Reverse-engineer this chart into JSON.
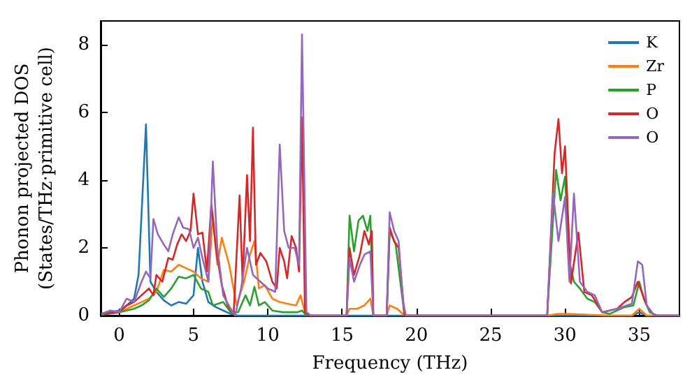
{
  "chart_data": {
    "type": "line",
    "xlabel": "Frequency (THz)",
    "ylabel": "Phonon projected DOS\n(States/THz·primitive cell)",
    "xlim": [
      -1.25,
      37.7
    ],
    "ylim": [
      0,
      8.7
    ],
    "xticks": [
      0,
      5,
      10,
      15,
      20,
      25,
      30,
      35
    ],
    "yticks": [
      0,
      2,
      4,
      6,
      8
    ],
    "legend": "top right",
    "series": [
      {
        "name": "K",
        "color": "#1f77b4",
        "x": [
          -1.2,
          0,
          0.5,
          1,
          1.3,
          1.8,
          2.1,
          2.5,
          3,
          3.5,
          4,
          4.5,
          5,
          5.3,
          5.6,
          6,
          6.5,
          7,
          7.5,
          8,
          34.5,
          35,
          35.5,
          37.7
        ],
        "values": [
          0.05,
          0.15,
          0.3,
          0.5,
          1.2,
          5.65,
          1.0,
          0.7,
          0.45,
          0.3,
          0.4,
          0.35,
          0.6,
          2.0,
          1.0,
          0.4,
          0.25,
          0.15,
          0.05,
          0,
          0,
          0.1,
          0,
          0
        ]
      },
      {
        "name": "Zr",
        "color": "#ff7f0e",
        "x": [
          -1.2,
          0,
          1,
          1.5,
          2,
          2.5,
          3,
          3.5,
          4,
          4.5,
          5,
          5.5,
          6,
          6.3,
          6.6,
          6.9,
          7.4,
          7.9,
          8.4,
          8.8,
          9.1,
          9.4,
          9.8,
          10.3,
          10.8,
          11.3,
          11.9,
          12.2,
          12.5,
          12.8,
          15.3,
          15.5,
          16,
          16.5,
          16.9,
          17.1,
          18.0,
          18.2,
          18.7,
          19.2,
          28.8,
          29.5,
          30.2,
          33,
          34.5,
          35,
          35.5,
          37.7
        ],
        "values": [
          0.05,
          0.1,
          0.3,
          0.4,
          0.5,
          0.7,
          1.35,
          1.3,
          1.5,
          1.4,
          1.3,
          1.1,
          1.0,
          2.95,
          1.5,
          2.3,
          1.5,
          0.3,
          1.0,
          1.8,
          2.2,
          0.8,
          0.9,
          0.5,
          0.4,
          0.35,
          0.3,
          0.6,
          0.1,
          0,
          0,
          0.2,
          0.2,
          0.3,
          0.5,
          0,
          0,
          0.3,
          0.2,
          0,
          0,
          0.05,
          0.05,
          0,
          0,
          0.2,
          0,
          0
        ]
      },
      {
        "name": "P",
        "color": "#2ca02c",
        "x": [
          -1.2,
          0,
          1,
          1.5,
          2,
          2.5,
          3,
          3.5,
          4,
          4.5,
          5,
          5.5,
          6,
          6.3,
          7,
          7.5,
          8,
          8.5,
          8.8,
          9.1,
          9.4,
          9.8,
          10.3,
          11,
          12,
          12.3,
          12.6,
          15.3,
          15.5,
          15.8,
          16.1,
          16.4,
          16.7,
          16.9,
          17.1,
          18.0,
          18.2,
          18.6,
          19.2,
          28.8,
          29.4,
          29.7,
          30.0,
          30.3,
          30.6,
          31,
          31.5,
          32,
          32.5,
          33,
          34,
          34.6,
          35,
          35.3,
          35.7,
          36.2,
          37.7
        ],
        "values": [
          0.02,
          0.1,
          0.2,
          0.3,
          0.45,
          0.8,
          0.55,
          0.8,
          1.15,
          1.1,
          1.2,
          0.8,
          0.7,
          0.3,
          0.4,
          0.1,
          0.1,
          0.6,
          0.3,
          0.85,
          0.3,
          0.4,
          0.15,
          0.1,
          0.1,
          0.15,
          0,
          0,
          2.95,
          1.9,
          2.8,
          2.95,
          2.5,
          2.95,
          0,
          0,
          2.5,
          2.1,
          0,
          0,
          4.3,
          3.4,
          4.1,
          1.6,
          1.0,
          0.8,
          0.5,
          0.4,
          0.1,
          0.05,
          0.25,
          0.3,
          1.0,
          0.5,
          0.1,
          0,
          0
        ]
      },
      {
        "name": "O",
        "color": "#d62728",
        "x": [
          -1.2,
          0,
          0.5,
          1,
          1.5,
          2,
          2.3,
          2.5,
          2.9,
          3.3,
          3.6,
          3.9,
          4.2,
          4.5,
          4.8,
          5.0,
          5.3,
          5.6,
          5.9,
          6.2,
          6.5,
          6.9,
          7.3,
          7.7,
          8.1,
          8.3,
          8.6,
          8.8,
          9.0,
          9.2,
          9.5,
          9.9,
          10.3,
          10.6,
          10.8,
          11.1,
          11.3,
          11.6,
          11.9,
          12.1,
          12.3,
          12.5,
          12.8,
          15.3,
          15.5,
          15.8,
          16.2,
          16.5,
          16.8,
          17.0,
          17.1,
          18.0,
          18.2,
          18.5,
          18.8,
          19.2,
          28.8,
          29.3,
          29.56,
          29.8,
          30.0,
          30.4,
          30.9,
          31.3,
          31.8,
          32.5,
          33.5,
          34,
          34.5,
          34.9,
          35.5,
          36,
          37.7
        ],
        "values": [
          0.05,
          0.1,
          0.3,
          0.4,
          0.6,
          0.8,
          0.6,
          1.2,
          1.0,
          1.7,
          1.65,
          2.1,
          2.4,
          2.2,
          2.5,
          3.6,
          2.4,
          2.45,
          1.3,
          3.3,
          2.0,
          0.9,
          0.3,
          0.05,
          3.55,
          1.0,
          4.15,
          2.2,
          5.55,
          1.5,
          1.85,
          1.6,
          1.0,
          0.8,
          2.0,
          1.6,
          1.1,
          2.35,
          2.0,
          1.3,
          5.85,
          0.1,
          0,
          0,
          2.0,
          1.2,
          1.8,
          2.5,
          2.1,
          2.5,
          0,
          0,
          2.6,
          2.2,
          2.0,
          0,
          0,
          4.8,
          5.8,
          4.2,
          5.0,
          0.95,
          2.45,
          0.7,
          0.6,
          0.1,
          0.2,
          0.4,
          0.55,
          1.0,
          0.3,
          0,
          0
        ]
      },
      {
        "name": "O",
        "color": "#9467bd",
        "x": [
          -1.2,
          -0.6,
          0,
          0.5,
          1,
          1.5,
          1.8,
          2.1,
          2.3,
          2.6,
          3.0,
          3.3,
          3.6,
          4.0,
          4.3,
          4.7,
          5.0,
          5.3,
          5.6,
          6.0,
          6.3,
          6.6,
          7.0,
          7.5,
          7.8,
          8.2,
          8.6,
          9.0,
          9.5,
          10.0,
          10.5,
          10.8,
          11.1,
          11.4,
          11.8,
          12.1,
          12.3,
          12.6,
          12.9,
          15.3,
          15.5,
          15.8,
          16.2,
          16.5,
          16.9,
          17.1,
          18.0,
          18.2,
          18.5,
          18.8,
          19.1,
          19.3,
          28.8,
          29.2,
          29.56,
          30.0,
          30.3,
          30.6,
          31,
          31.5,
          32,
          32.5,
          33.5,
          34.5,
          34.9,
          35.2,
          35.5,
          36,
          37.7
        ],
        "values": [
          0.05,
          0.15,
          0.1,
          0.5,
          0.4,
          1.0,
          1.3,
          1.1,
          2.85,
          2.4,
          2.1,
          1.9,
          2.4,
          2.9,
          2.6,
          2.55,
          2.0,
          2.3,
          1.7,
          1.0,
          4.55,
          2.0,
          0.6,
          0.2,
          0,
          0.8,
          2.0,
          1.2,
          1.0,
          0.8,
          0.7,
          5.05,
          2.5,
          2.0,
          2.0,
          1.5,
          8.3,
          0.1,
          0,
          0,
          1.7,
          1.0,
          1.5,
          1.8,
          1.9,
          0,
          0,
          3.05,
          2.5,
          2.2,
          0.4,
          0,
          0,
          3.6,
          2.2,
          3.5,
          1.0,
          3.6,
          1.0,
          0.7,
          0.6,
          0.1,
          0.2,
          0.35,
          1.6,
          1.5,
          0.3,
          0,
          0
        ]
      }
    ]
  }
}
